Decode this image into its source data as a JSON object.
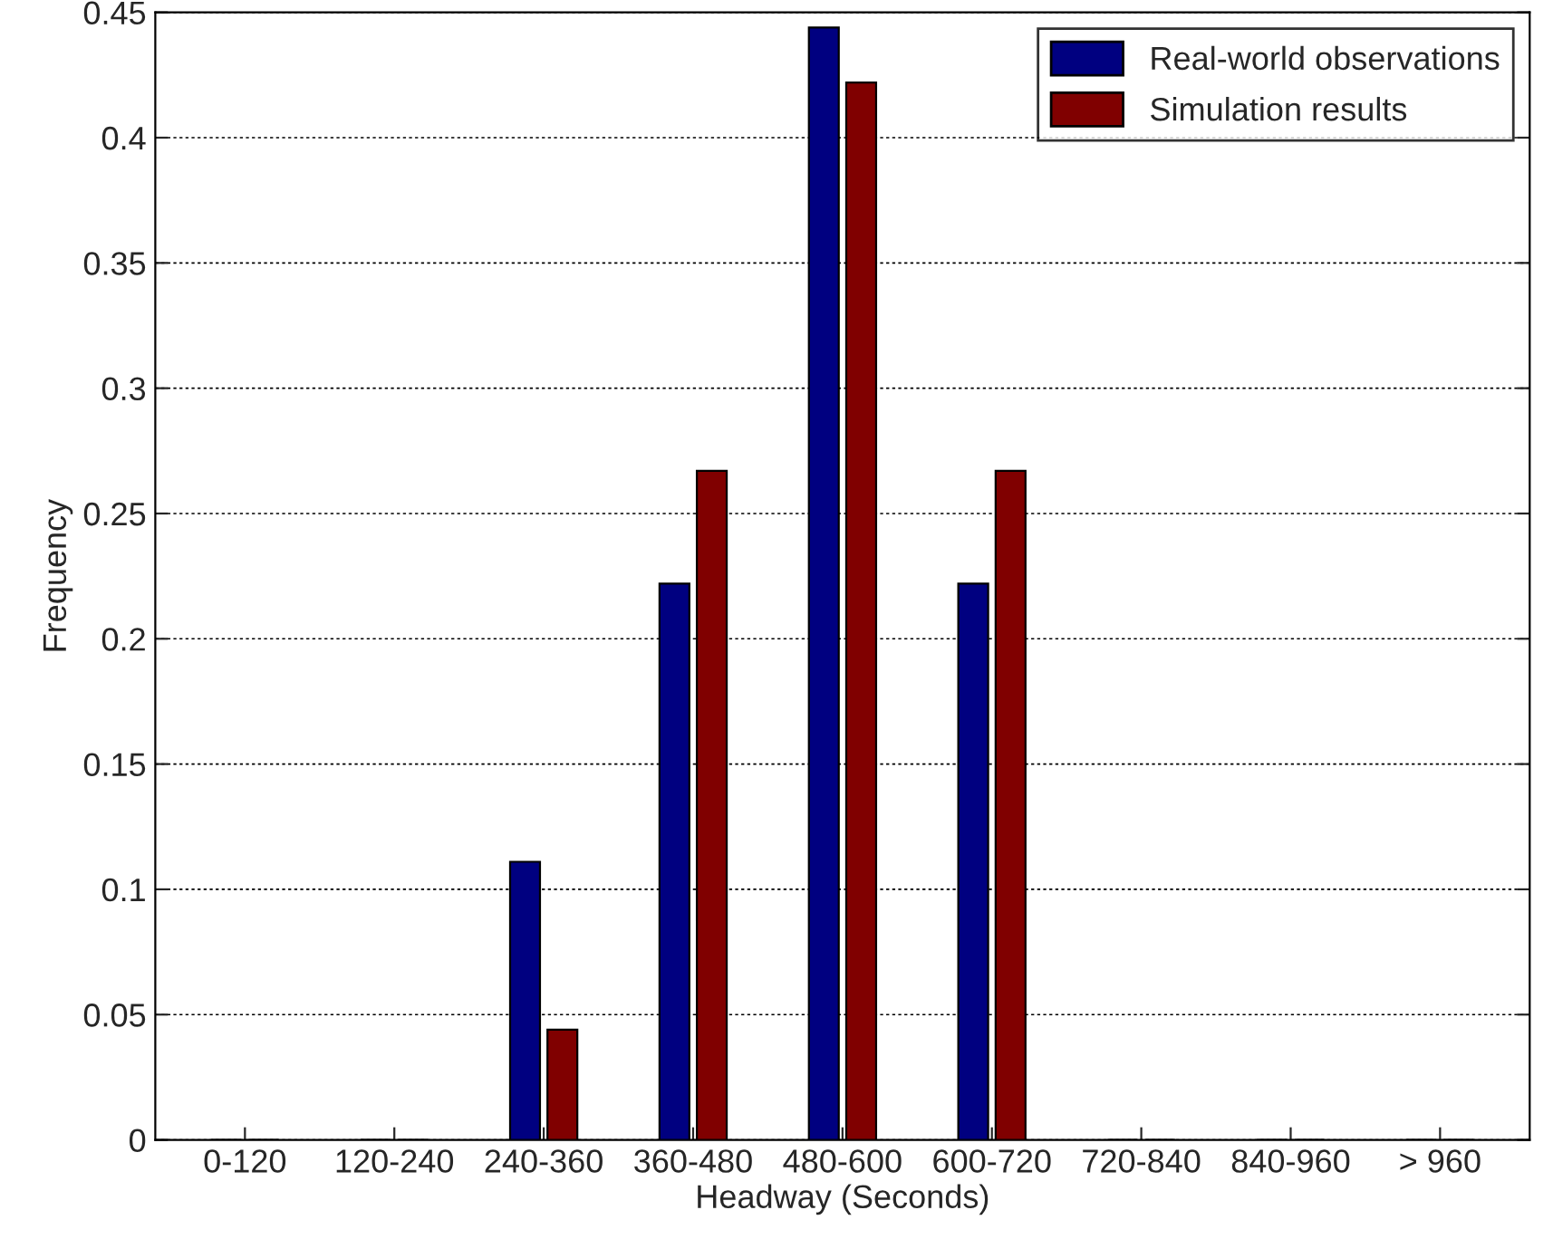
{
  "chart_data": {
    "type": "bar",
    "xlabel": "Headway (Seconds)",
    "ylabel": "Frequency",
    "categories": [
      "0-120",
      "120-240",
      "240-360",
      "360-480",
      "480-600",
      "600-720",
      "720-840",
      "840-960",
      "> 960"
    ],
    "series": [
      {
        "name": "Real-world observations",
        "color": "#000080",
        "values": [
          0,
          0,
          0.111,
          0.222,
          0.444,
          0.222,
          0,
          0,
          0
        ]
      },
      {
        "name": "Simulation results",
        "color": "#800000",
        "values": [
          0,
          0,
          0.044,
          0.267,
          0.422,
          0.267,
          0,
          0,
          0
        ]
      }
    ],
    "ylim": [
      0,
      0.45
    ],
    "yticks": [
      0,
      0.05,
      0.1,
      0.15,
      0.2,
      0.25,
      0.3,
      0.35,
      0.4,
      0.45
    ],
    "grid": "y",
    "legend": "top right"
  }
}
